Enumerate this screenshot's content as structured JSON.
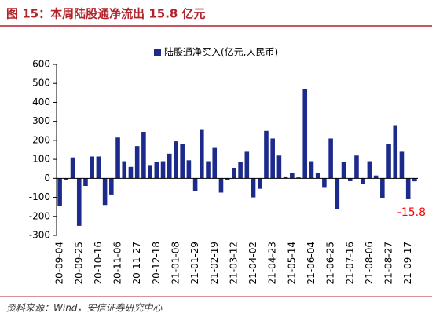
{
  "chart_data": {
    "type": "bar",
    "title": "图 15：本周陆股通净流出 15.8 亿元",
    "source": "资料来源：Wind，安信证券研究中心",
    "categories": [
      "20-09-04",
      null,
      null,
      "20-09-25",
      null,
      null,
      "20-10-16",
      null,
      null,
      "20-11-06",
      null,
      null,
      "20-11-27",
      null,
      null,
      "20-12-18",
      null,
      null,
      "21-01-08",
      null,
      null,
      "21-01-29",
      null,
      null,
      "21-02-19",
      null,
      null,
      "21-03-12",
      null,
      null,
      "21-04-02",
      null,
      null,
      "21-04-23",
      null,
      null,
      "21-05-14",
      null,
      null,
      "21-06-04",
      null,
      null,
      "21-06-25",
      null,
      null,
      "21-07-16",
      null,
      null,
      "21-08-06",
      null,
      null,
      "21-08-27",
      null,
      null,
      "21-09-17",
      null
    ],
    "series": [
      {
        "name": "陆股通净买入(亿元,人民币)",
        "color": "#1c2a8c",
        "values": [
          -145,
          -10,
          110,
          -250,
          -40,
          115,
          115,
          -140,
          -85,
          215,
          90,
          60,
          170,
          245,
          70,
          85,
          90,
          130,
          195,
          180,
          95,
          -65,
          255,
          90,
          160,
          -75,
          -10,
          55,
          85,
          140,
          -100,
          -55,
          250,
          210,
          120,
          10,
          30,
          5,
          470,
          90,
          30,
          -50,
          210,
          -160,
          85,
          -15,
          120,
          -30,
          90,
          15,
          -105,
          180,
          280,
          140,
          -110,
          -15.8
        ]
      }
    ],
    "ylim": [
      -300,
      600
    ],
    "yticks": [
      -300,
      -200,
      -100,
      0,
      100,
      200,
      300,
      400,
      500,
      600
    ],
    "value_label_color": "#ff0000",
    "legend": "top"
  }
}
